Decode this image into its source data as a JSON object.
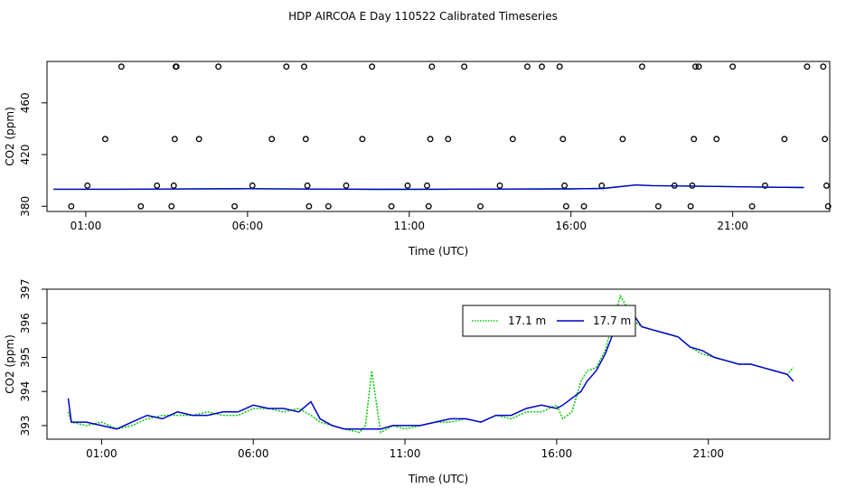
{
  "title": "HDP AIRCOA E  Day 110522  Calibrated Timeseries",
  "colors": {
    "series_17_1": "#00cc00",
    "series_17_7": "#0000cc",
    "points": "#000000"
  },
  "chart_data": [
    {
      "type": "scatter",
      "xlabel": "Time (UTC)",
      "ylabel": "CO2 (ppm)",
      "x_ticks": [
        "01:00",
        "06:00",
        "11:00",
        "16:00",
        "21:00"
      ],
      "y_ticks": [
        "380",
        "420",
        "460"
      ],
      "xlim": [
        -0.2,
        24.0
      ],
      "ylim": [
        376,
        492
      ],
      "grid": false,
      "points_x": [
        0.55,
        1.05,
        1.6,
        2.1,
        2.7,
        3.2,
        3.65,
        3.72,
        3.75,
        3.78,
        3.8,
        4.5,
        5.1,
        5.6,
        6.15,
        6.75,
        7.2,
        7.75,
        7.8,
        7.85,
        7.9,
        8.5,
        9.05,
        9.55,
        9.85,
        10.45,
        10.95,
        11.55,
        11.6,
        11.65,
        11.7,
        12.2,
        12.7,
        13.2,
        13.8,
        14.2,
        14.65,
        15.1,
        15.65,
        15.75,
        15.8,
        15.85,
        16.4,
        16.95,
        17.6,
        18.2,
        18.7,
        19.2,
        19.7,
        19.75,
        19.8,
        19.85,
        19.95,
        20.5,
        21.0,
        21.6,
        22.0,
        22.6,
        23.3,
        23.8,
        23.85,
        23.9,
        23.95
      ],
      "points_y": [
        380,
        396,
        432,
        488,
        380,
        396,
        380,
        396,
        432,
        488,
        488,
        432,
        488,
        380,
        396,
        432,
        488,
        488,
        432,
        396,
        380,
        380,
        396,
        432,
        488,
        380,
        396,
        396,
        380,
        432,
        488,
        432,
        488,
        380,
        396,
        432,
        488,
        488,
        488,
        432,
        396,
        380,
        380,
        396,
        432,
        488,
        380,
        396,
        380,
        396,
        432,
        488,
        488,
        432,
        488,
        380,
        396,
        432,
        488,
        488,
        432,
        396,
        380
      ],
      "line_series": [
        {
          "x": [
            0,
            2,
            4,
            6,
            8,
            10,
            12,
            14,
            16,
            17,
            18,
            18.5,
            20,
            22,
            23.2
          ],
          "values": [
            393.2,
            393.2,
            393.4,
            393.6,
            393.3,
            393.1,
            393.2,
            393.3,
            393.5,
            393.8,
            396.5,
            396.0,
            395.5,
            394.8,
            394.5
          ]
        }
      ]
    },
    {
      "type": "line",
      "xlabel": "Time (UTC)",
      "ylabel": "CO2 (ppm)",
      "x_ticks": [
        "01:00",
        "06:00",
        "11:00",
        "16:00",
        "21:00"
      ],
      "y_ticks": [
        "393",
        "394",
        "395",
        "396",
        "397"
      ],
      "xlim": [
        -0.8,
        25.0
      ],
      "ylim": [
        392.6,
        397.0
      ],
      "grid": false,
      "legend": "top-right",
      "x": [
        -0.1,
        0.0,
        0.5,
        1.0,
        1.5,
        2.0,
        2.5,
        3.0,
        3.5,
        4.0,
        4.5,
        5.0,
        5.5,
        6.0,
        6.5,
        7.0,
        7.5,
        7.9,
        8.2,
        8.6,
        9.0,
        9.5,
        9.7,
        9.9,
        10.2,
        10.6,
        11.0,
        11.5,
        12.0,
        12.5,
        13.0,
        13.5,
        14.0,
        14.5,
        15.0,
        15.5,
        16.0,
        16.2,
        16.5,
        16.8,
        17.0,
        17.3,
        17.6,
        17.9,
        18.1,
        18.3,
        18.5,
        18.8,
        19.2,
        19.6,
        20.0,
        20.4,
        20.8,
        21.2,
        21.6,
        22.0,
        22.4,
        22.8,
        23.2,
        23.6,
        23.8
      ],
      "series": [
        {
          "name": "17.1 m",
          "values": [
            393.4,
            393.1,
            393.0,
            393.1,
            392.9,
            393.0,
            393.2,
            393.3,
            393.3,
            393.3,
            393.4,
            393.3,
            393.3,
            393.5,
            393.5,
            393.4,
            393.5,
            393.3,
            393.1,
            393.0,
            392.9,
            392.8,
            393.0,
            394.6,
            392.8,
            393.0,
            392.9,
            393.0,
            393.1,
            393.1,
            393.2,
            393.1,
            393.3,
            393.2,
            393.4,
            393.4,
            393.6,
            393.2,
            393.4,
            394.3,
            394.6,
            394.7,
            395.2,
            396.2,
            396.8,
            396.5,
            396.1,
            395.9,
            395.8,
            395.7,
            395.6,
            395.3,
            395.1,
            395.0,
            394.9,
            394.8,
            394.8,
            394.7,
            394.6,
            394.5,
            394.7
          ]
        },
        {
          "name": "17.7 m",
          "values": [
            393.8,
            393.1,
            393.1,
            393.0,
            392.9,
            393.1,
            393.3,
            393.2,
            393.4,
            393.3,
            393.3,
            393.4,
            393.4,
            393.6,
            393.5,
            393.5,
            393.4,
            393.7,
            393.2,
            393.0,
            392.9,
            392.9,
            392.9,
            392.9,
            392.9,
            393.0,
            393.0,
            393.0,
            393.1,
            393.2,
            393.2,
            393.1,
            393.3,
            393.3,
            393.5,
            393.6,
            393.5,
            393.6,
            393.8,
            394.0,
            394.3,
            394.6,
            395.1,
            395.8,
            396.1,
            396.4,
            396.3,
            395.9,
            395.8,
            395.7,
            395.6,
            395.3,
            395.2,
            395.0,
            394.9,
            394.8,
            394.8,
            394.7,
            394.6,
            394.5,
            394.3
          ]
        }
      ]
    }
  ]
}
